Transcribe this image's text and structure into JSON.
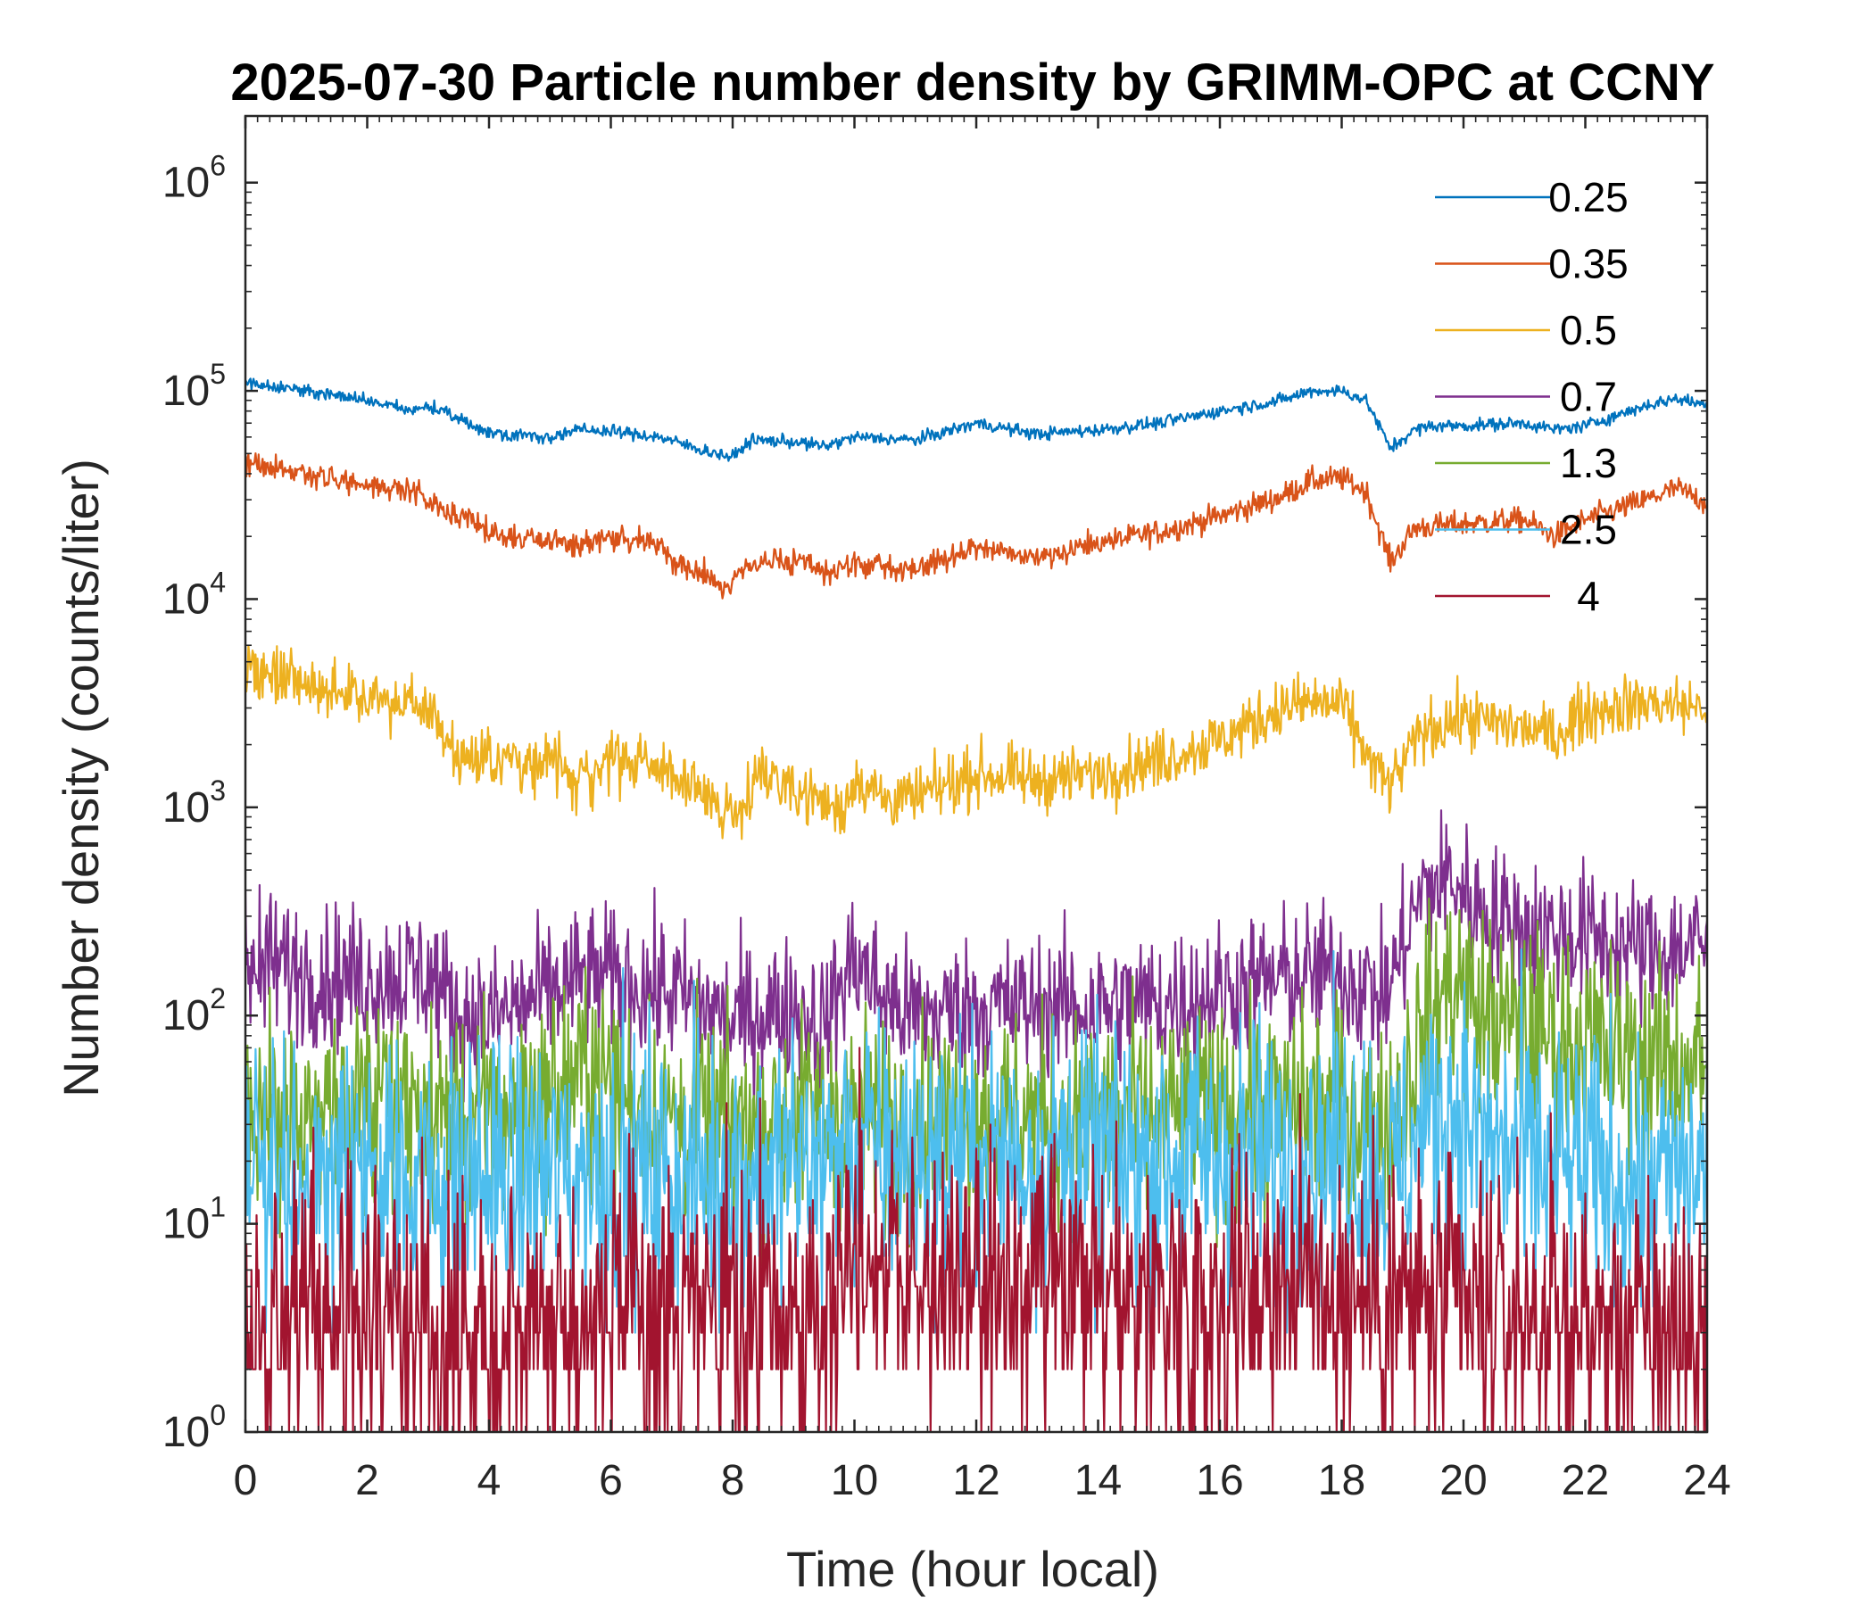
{
  "chart_data": {
    "type": "line",
    "title": "2025-07-30 Particle number density by GRIMM-OPC at CCNY",
    "xlabel": "Time (hour local)",
    "ylabel": "Number density (counts/liter)",
    "xlim": [
      0,
      24
    ],
    "ylim": [
      1,
      2000000
    ],
    "yscale": "log",
    "xticks": [
      0,
      2,
      4,
      6,
      8,
      10,
      12,
      14,
      16,
      18,
      20,
      22,
      24
    ],
    "yticks": [
      {
        "base": "10",
        "exp": "0"
      },
      {
        "base": "10",
        "exp": "1"
      },
      {
        "base": "10",
        "exp": "2"
      },
      {
        "base": "10",
        "exp": "3"
      },
      {
        "base": "10",
        "exp": "4"
      },
      {
        "base": "10",
        "exp": "5"
      },
      {
        "base": "10",
        "exp": "6"
      }
    ],
    "legend_position": "top-right",
    "series": [
      {
        "name": "0.25",
        "color": "#0072BD",
        "noise": 0.015,
        "x": [
          0,
          1,
          2,
          2.7,
          3,
          4,
          5,
          5.5,
          6,
          6.8,
          7.5,
          8,
          8.3,
          9,
          9.5,
          10,
          11,
          12,
          13,
          14,
          15,
          16,
          17,
          17.5,
          18,
          18.4,
          18.8,
          19.2,
          19.5,
          20,
          21,
          21.5,
          22,
          23,
          23.5,
          24
        ],
        "y": [
          110000,
          100000,
          90000,
          80000,
          85000,
          63000,
          60000,
          65000,
          64000,
          60000,
          52000,
          48000,
          58000,
          57000,
          54000,
          60000,
          58000,
          70000,
          62000,
          65000,
          70000,
          80000,
          90000,
          100000,
          100000,
          90000,
          53000,
          65000,
          68000,
          68000,
          70000,
          65000,
          68000,
          85000,
          92000,
          85000
        ]
      },
      {
        "name": "0.35",
        "color": "#D95319",
        "noise": 0.03,
        "x": [
          0,
          1,
          2,
          2.8,
          3,
          4,
          5,
          5.5,
          6,
          6.8,
          7,
          8,
          8.3,
          9,
          9.5,
          10,
          11,
          12,
          13,
          14,
          15,
          16,
          17,
          17.5,
          18,
          18.4,
          18.8,
          19.2,
          20,
          21,
          21.5,
          22,
          23,
          23.5,
          24
        ],
        "y": [
          45000,
          40000,
          35000,
          33000,
          30000,
          21000,
          19000,
          18000,
          20000,
          19000,
          15000,
          11500,
          15000,
          15000,
          13500,
          14500,
          14000,
          17500,
          16000,
          18500,
          21000,
          25000,
          31000,
          37000,
          38000,
          33000,
          15000,
          22000,
          23000,
          24000,
          20000,
          24000,
          30000,
          34000,
          29000
        ]
      },
      {
        "name": "0.5",
        "color": "#EDB120",
        "noise": 0.07,
        "x": [
          0,
          1,
          2,
          2.8,
          3.1,
          3.5,
          4,
          5,
          5.4,
          6,
          7,
          7.5,
          8,
          8.5,
          9,
          9.8,
          10,
          10.5,
          11,
          12,
          13,
          14,
          15,
          16,
          17,
          17.5,
          18,
          18.5,
          18.8,
          19.3,
          20,
          21,
          21.5,
          22,
          23,
          24
        ],
        "y": [
          4500,
          3800,
          3400,
          3200,
          2600,
          1800,
          1700,
          1700,
          1300,
          1700,
          1500,
          1100,
          950,
          1500,
          1250,
          950,
          1400,
          1100,
          1100,
          1450,
          1350,
          1450,
          1700,
          2100,
          3000,
          3200,
          3100,
          1600,
          1250,
          2300,
          2700,
          2400,
          2200,
          2900,
          3200,
          3000
        ]
      },
      {
        "name": "0.7",
        "color": "#7E2F8E",
        "noise": 0.17,
        "x": [
          0,
          1,
          2,
          3,
          3.5,
          4,
          5,
          5.5,
          6,
          7,
          8,
          9,
          9.5,
          10,
          10.5,
          11,
          12,
          13,
          14,
          15,
          16,
          17,
          18,
          18.7,
          19.3,
          19.8,
          20.2,
          21,
          22,
          23,
          24
        ],
        "y": [
          190,
          160,
          150,
          160,
          100,
          95,
          130,
          150,
          150,
          130,
          95,
          110,
          90,
          190,
          120,
          100,
          110,
          110,
          110,
          115,
          130,
          150,
          160,
          120,
          380,
          460,
          330,
          260,
          240,
          200,
          220
        ]
      },
      {
        "name": "1.3",
        "color": "#77AC30",
        "noise": 0.25,
        "x": [
          0,
          1,
          2,
          3,
          4,
          5,
          5.6,
          6,
          7,
          8,
          9,
          10,
          11,
          12,
          13,
          14,
          15,
          16,
          17,
          18,
          18.8,
          19.3,
          19.8,
          20.3,
          21,
          22,
          23,
          24
        ],
        "y": [
          32,
          33,
          35,
          33,
          32,
          40,
          55,
          45,
          32,
          30,
          32,
          35,
          30,
          33,
          32,
          32,
          32,
          35,
          34,
          38,
          28,
          80,
          150,
          100,
          85,
          75,
          60,
          60
        ]
      },
      {
        "name": "2.5",
        "color": "#4DBEEE",
        "noise": 0.33,
        "x": [
          0,
          2,
          4,
          6,
          8,
          10,
          12,
          14,
          16,
          18,
          18.8,
          19.4,
          19.8,
          20.3,
          21,
          22,
          23,
          24
        ],
        "y": [
          17,
          17,
          17,
          18,
          17,
          22,
          20,
          20,
          21,
          22,
          16,
          30,
          38,
          25,
          20,
          18,
          16,
          17
        ]
      },
      {
        "name": "4",
        "color": "#A2142F",
        "noise": 0.34,
        "x": [
          0,
          2,
          4,
          6,
          8,
          9.5,
          10,
          10.5,
          11,
          12,
          14,
          16,
          17,
          18,
          19,
          20,
          22,
          24
        ],
        "y": [
          3.5,
          3.5,
          3.5,
          3.6,
          3.6,
          3.6,
          9,
          7,
          5,
          4.5,
          4.5,
          4.5,
          6,
          4.8,
          4.2,
          3.8,
          3.2,
          3.2
        ]
      }
    ]
  }
}
